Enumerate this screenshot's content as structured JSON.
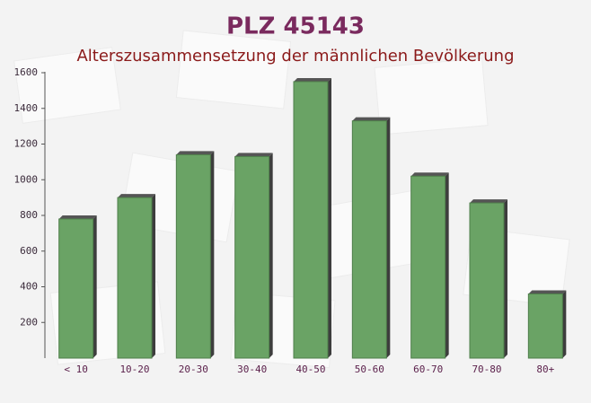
{
  "chart_data": {
    "type": "bar",
    "title": "PLZ 45143",
    "subtitle": "Alterszusammensetzung der männlichen Bevölkerung",
    "categories": [
      "< 10",
      "10-20",
      "20-30",
      "30-40",
      "40-50",
      "50-60",
      "60-70",
      "70-80",
      "80+"
    ],
    "values": [
      780,
      900,
      1140,
      1130,
      1550,
      1330,
      1020,
      870,
      360
    ],
    "color": "#6aa365",
    "ylim": [
      0,
      1600
    ],
    "yticks": [
      200,
      400,
      600,
      800,
      1000,
      1200,
      1400,
      1600
    ]
  }
}
